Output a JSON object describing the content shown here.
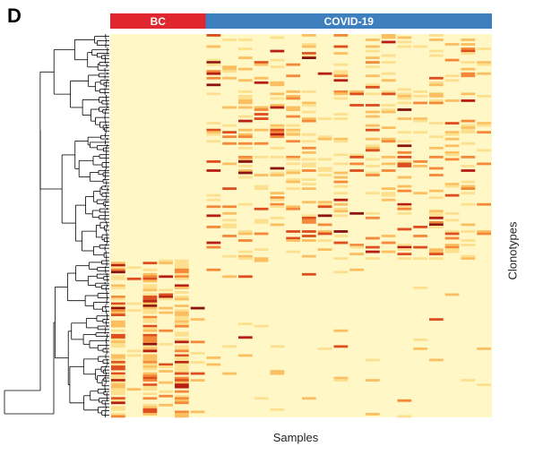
{
  "panel": {
    "letter": "D"
  },
  "chart_data": {
    "type": "heatmap",
    "xlabel": "Samples",
    "ylabel": "Clonotypes",
    "groups": [
      {
        "name": "BC",
        "n_samples": 6,
        "color": "#e0262e"
      },
      {
        "name": "COVID-19",
        "n_samples": 18,
        "color": "#3d7fbf"
      }
    ],
    "n_samples": 24,
    "n_clonotypes": 170,
    "row_split_fraction": 0.591,
    "dendrogram": "left",
    "colormap": [
      "#fff8c6",
      "#fde08f",
      "#fbbf62",
      "#f4893a",
      "#dd4f1e",
      "#b81f14",
      "#8a1410"
    ],
    "background_color": "#fff8c6"
  }
}
